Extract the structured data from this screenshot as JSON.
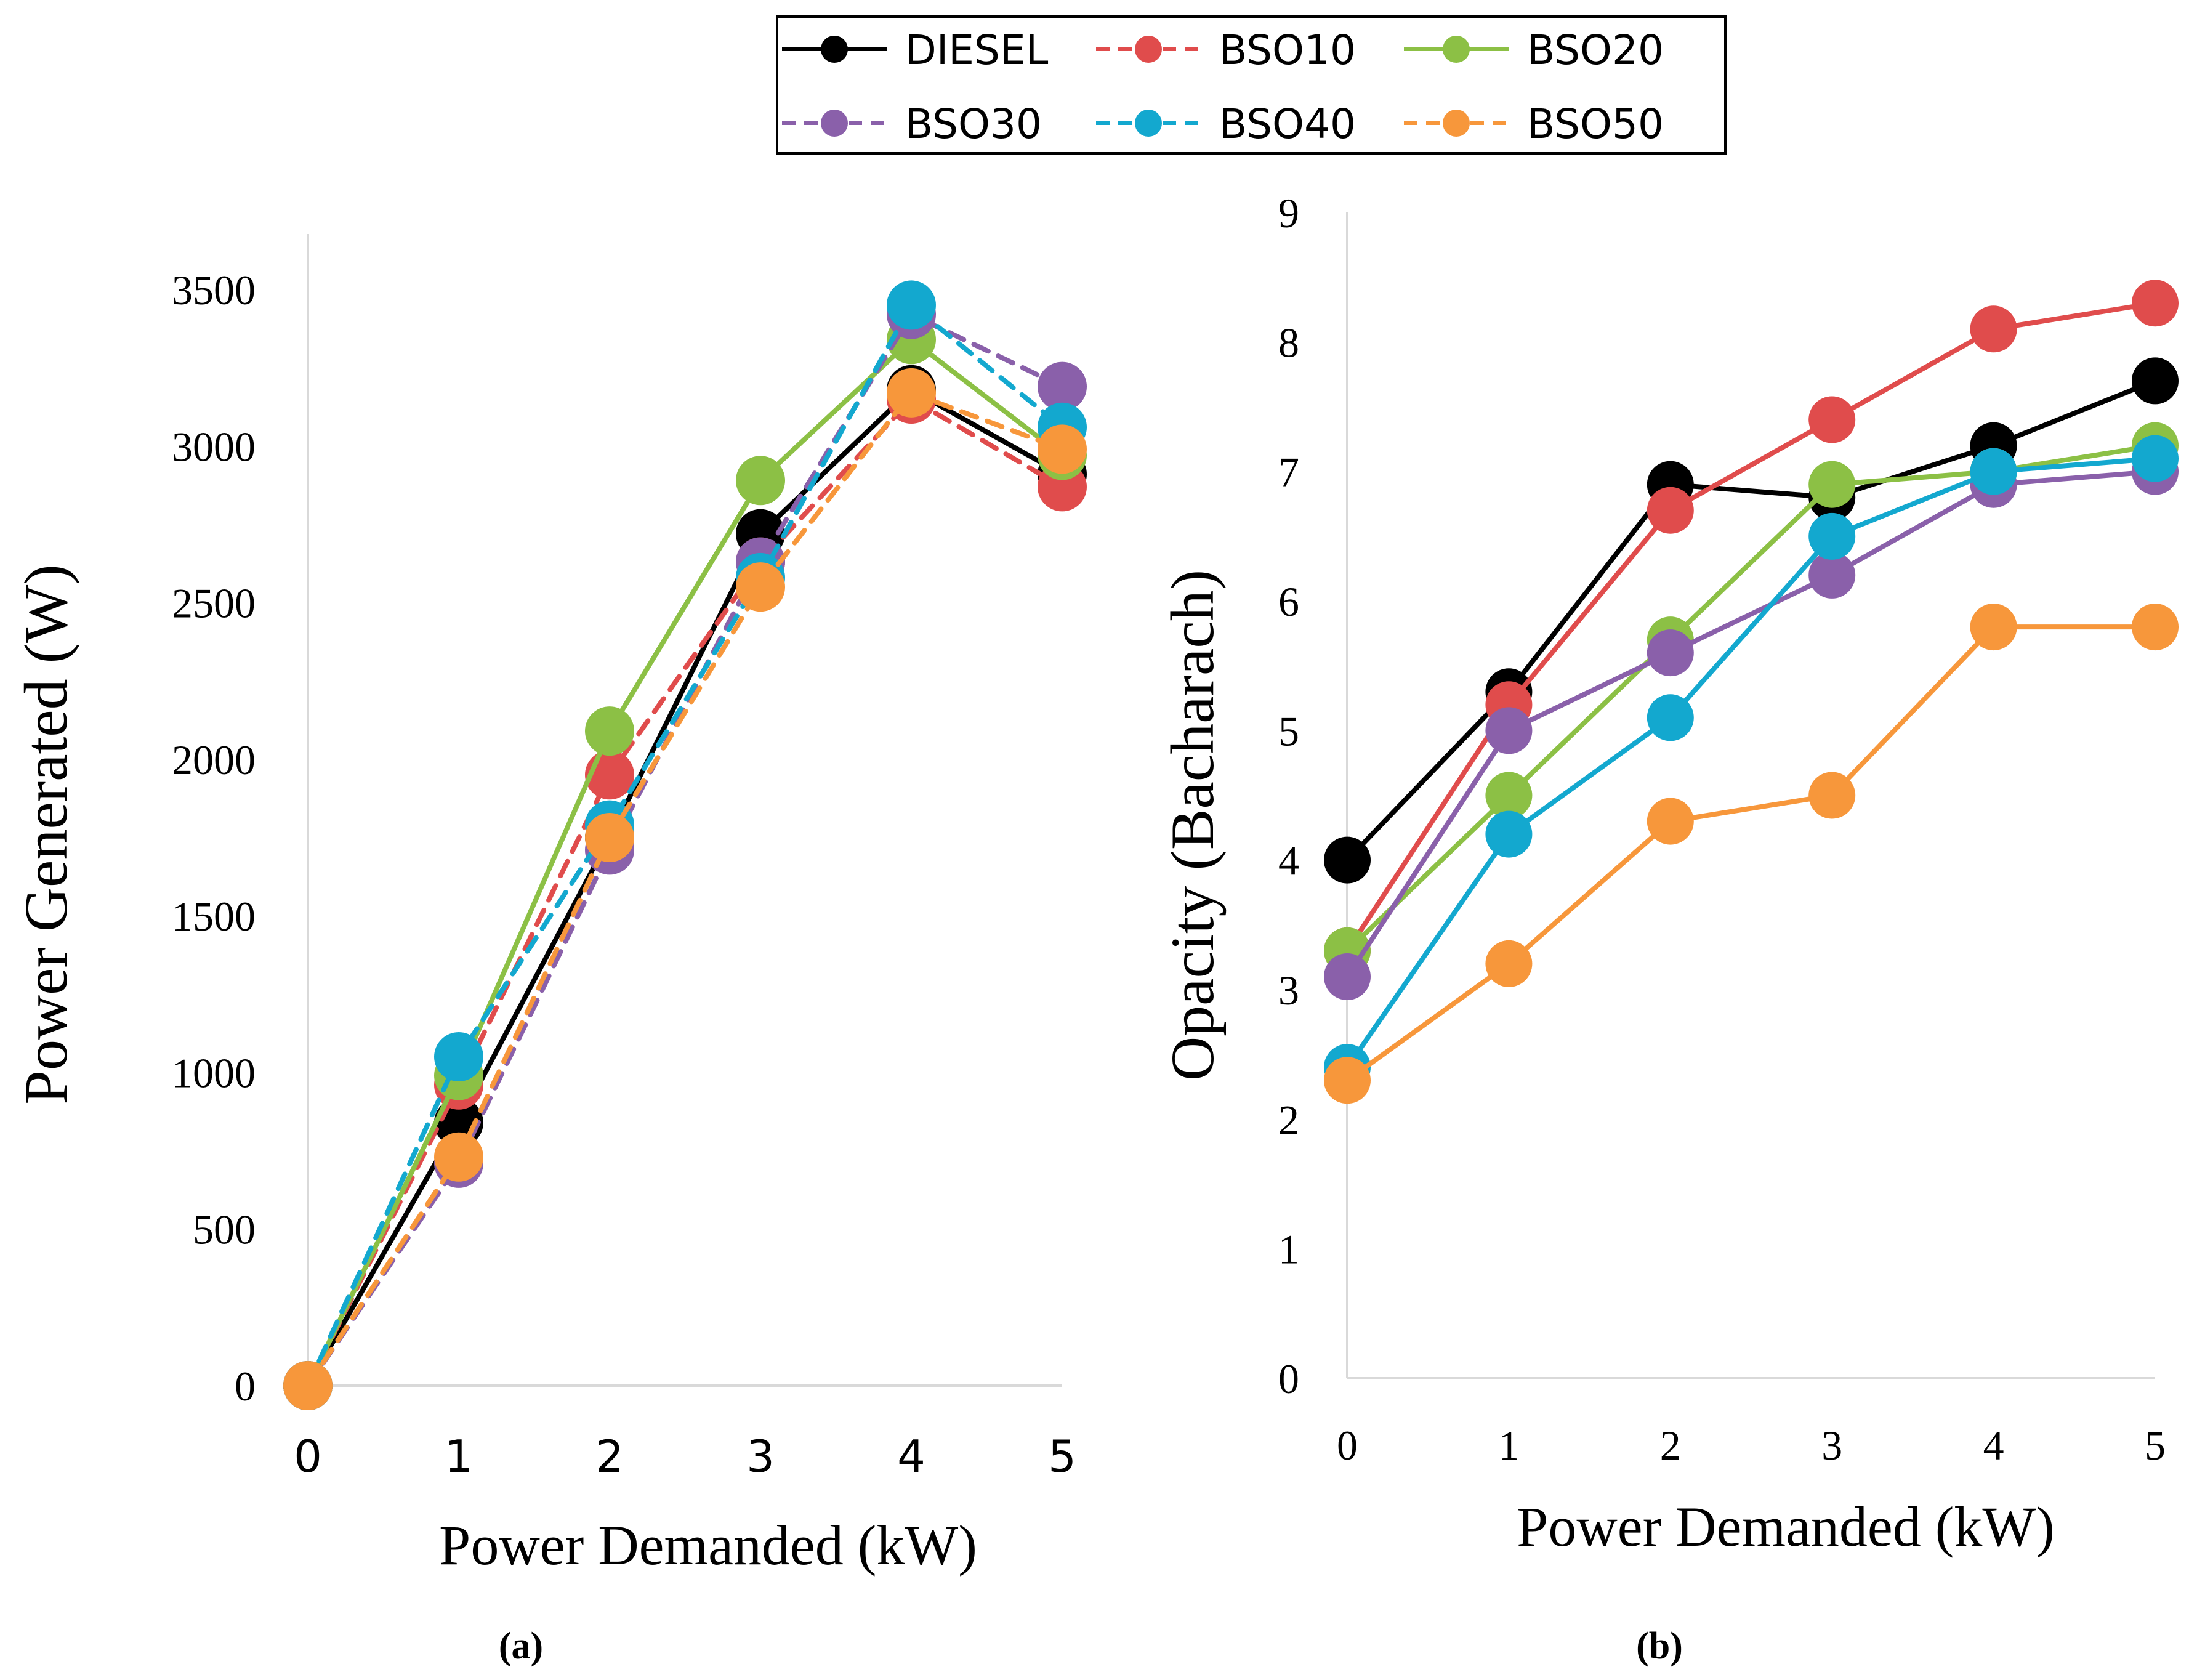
{
  "legend": {
    "entries": [
      {
        "name": "DIESEL",
        "color": "#000000",
        "dash": "solid"
      },
      {
        "name": "BSO10",
        "color": "#e04c4c",
        "dash": "dashed"
      },
      {
        "name": "BSO20",
        "color": "#8cc045",
        "dash": "solid"
      },
      {
        "name": "BSO30",
        "color": "#8a60aa",
        "dash": "dashed"
      },
      {
        "name": "BSO40",
        "color": "#13a8cf",
        "dash": "dashed"
      },
      {
        "name": "BSO50",
        "color": "#f7973b",
        "dash": "dashed"
      }
    ]
  },
  "chart_data": [
    {
      "type": "line",
      "panel": "(a)",
      "xlabel": "Power Demanded (kW)",
      "ylabel": "Power Generated (W)",
      "x": [
        0,
        1,
        2,
        3,
        4,
        5
      ],
      "xticks": [
        "0",
        "1",
        "2",
        "3",
        "4",
        "5"
      ],
      "yticks": [
        "0",
        "500",
        "1000",
        "1500",
        "2000",
        "2500",
        "3000",
        "3500"
      ],
      "ylim": [
        0,
        3500
      ],
      "series": [
        {
          "name": "DIESEL",
          "values": [
            0,
            840,
            1750,
            2720,
            3180,
            2910
          ]
        },
        {
          "name": "BSO10",
          "values": [
            0,
            960,
            1950,
            2630,
            3150,
            2870
          ]
        },
        {
          "name": "BSO20",
          "values": [
            0,
            990,
            2090,
            2890,
            3340,
            2970
          ]
        },
        {
          "name": "BSO30",
          "values": [
            0,
            710,
            1710,
            2630,
            3420,
            3190
          ]
        },
        {
          "name": "BSO40",
          "values": [
            0,
            1050,
            1790,
            2580,
            3450,
            3060
          ]
        },
        {
          "name": "BSO50",
          "values": [
            0,
            730,
            1750,
            2550,
            3170,
            2990
          ]
        }
      ]
    },
    {
      "type": "line",
      "panel": "(b)",
      "xlabel": "Power Demanded (kW)",
      "ylabel": "Opacity (Bacharach)",
      "x": [
        0,
        1,
        2,
        3,
        4,
        5
      ],
      "xticks": [
        "0",
        "1",
        "2",
        "3",
        "4",
        "5"
      ],
      "yticks": [
        "0",
        "1",
        "2",
        "3",
        "4",
        "5",
        "6",
        "7",
        "8",
        "9"
      ],
      "ylim": [
        0,
        9
      ],
      "series": [
        {
          "name": "DIESEL",
          "values": [
            4.0,
            5.3,
            6.9,
            6.8,
            7.2,
            7.7
          ]
        },
        {
          "name": "BSO10",
          "values": [
            3.3,
            5.2,
            6.7,
            7.4,
            8.1,
            8.3
          ]
        },
        {
          "name": "BSO20",
          "values": [
            3.3,
            4.5,
            5.7,
            6.9,
            7.0,
            7.2
          ]
        },
        {
          "name": "BSO30",
          "values": [
            3.1,
            5.0,
            5.6,
            6.2,
            6.9,
            7.0
          ]
        },
        {
          "name": "BSO40",
          "values": [
            2.4,
            4.2,
            5.1,
            6.5,
            7.0,
            7.1
          ]
        },
        {
          "name": "BSO50",
          "values": [
            2.3,
            3.2,
            4.3,
            4.5,
            5.8,
            5.8
          ]
        }
      ]
    }
  ]
}
